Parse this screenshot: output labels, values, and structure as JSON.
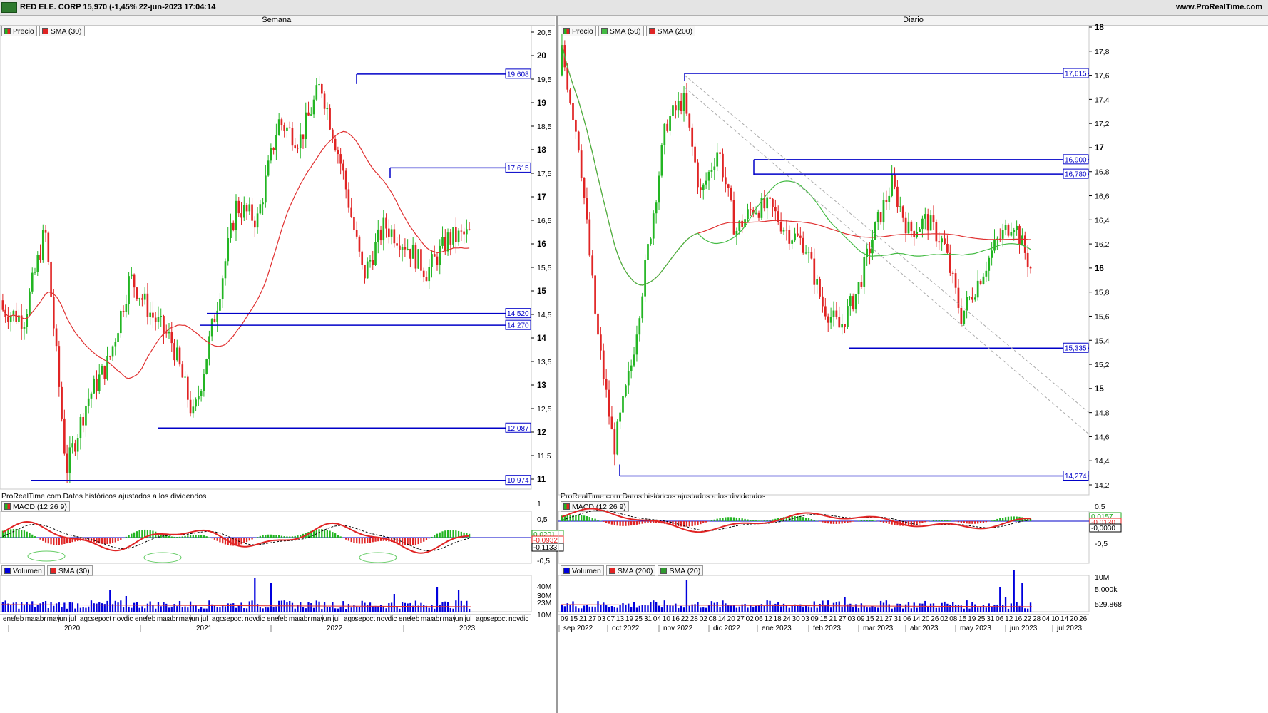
{
  "header": {
    "title": "RED ELE. CORP 15,970 (-1,45% 22-jun-2023 17:04:14",
    "site": "www.ProRealTime.com"
  },
  "colors": {
    "up": "#22b522",
    "down": "#e02424",
    "level": "#0000c8",
    "sma_red": "#e03030",
    "sma_green": "#44bb44",
    "volume": "#0000dd"
  },
  "left": {
    "title": "Semanal",
    "legend": [
      "Precio",
      "SMA (30)"
    ],
    "note": "ProRealTime.com  Datos históricos ajustados a los dividendos",
    "price_axis": [
      "20,5",
      "20",
      "19,5",
      "19",
      "18,5",
      "18",
      "17,5",
      "17",
      "16,5",
      "16",
      "15,5",
      "15",
      "14,5",
      "14",
      "13,5",
      "13",
      "12,5",
      "12",
      "11,5",
      "11"
    ],
    "levels": [
      "19,608",
      "17,615",
      "14,520",
      "14,270",
      "12,087",
      "10,974"
    ],
    "macd": {
      "legend": "MACD (12 26 9)",
      "axis": [
        "1",
        "0,5",
        "-0,5"
      ],
      "vals": [
        "0,0201",
        "-0,0932",
        "-0,1133"
      ]
    },
    "volume": {
      "legend": [
        "Volumen",
        "SMA (30)"
      ],
      "axis": [
        "40M",
        "30M",
        "23M",
        "10M"
      ]
    },
    "months": [
      "ene",
      "feb",
      "mar",
      "abr",
      "may",
      "jun",
      "jul",
      "ago",
      "sep",
      "oct",
      "nov",
      "dic",
      "ene",
      "feb",
      "mar",
      "abr",
      "may",
      "jun",
      "jul",
      "ago",
      "sep",
      "oct",
      "nov",
      "dic",
      "ene",
      "feb",
      "mar",
      "abr",
      "may",
      "jun",
      "jul",
      "ago",
      "sep",
      "oct",
      "nov",
      "dic",
      "ene",
      "feb",
      "mar",
      "abr",
      "may",
      "jun",
      "jul",
      "ago",
      "sep",
      "oct",
      "nov",
      "dic"
    ],
    "years": [
      "2020",
      "2021",
      "2022",
      "2023"
    ]
  },
  "right": {
    "title": "Diario",
    "legend": [
      "Precio",
      "SMA (50)",
      "SMA (200)"
    ],
    "note": "ProRealTime.com  Datos históricos ajustados a los dividendos",
    "price_axis": [
      "18",
      "17,8",
      "17,6",
      "17,4",
      "17,2",
      "17",
      "16,8",
      "16,6",
      "16,4",
      "16,2",
      "16",
      "15,8",
      "15,6",
      "15,4",
      "15,2",
      "15",
      "14,8",
      "14,6",
      "14,4",
      "14,2"
    ],
    "levels": [
      "17,615",
      "16,900",
      "16,780",
      "15,335",
      "14,274"
    ],
    "macd": {
      "legend": "MACD (12 26 9)",
      "axis": [
        "0,5",
        "-0,5"
      ],
      "vals": [
        "0,0157",
        "-0,0130",
        "-0,0030"
      ]
    },
    "volume": {
      "legend": [
        "Volumen",
        "SMA (200)",
        "SMA (20)"
      ],
      "axis": [
        "10M",
        "5.000k",
        "529.868"
      ]
    },
    "days": [
      "09",
      "15",
      "21",
      "27",
      "03",
      "07",
      "13",
      "19",
      "25",
      "31",
      "04",
      "10",
      "16",
      "22",
      "28",
      "02",
      "08",
      "14",
      "20",
      "27",
      "02",
      "06",
      "12",
      "18",
      "24",
      "30",
      "03",
      "09",
      "15",
      "21",
      "27",
      "03",
      "09",
      "15",
      "21",
      "27",
      "31",
      "06",
      "14",
      "20",
      "26",
      "02",
      "08",
      "15",
      "19",
      "25",
      "31",
      "06",
      "12",
      "16",
      "22",
      "28",
      "04",
      "10",
      "14",
      "20",
      "26"
    ],
    "month_labels": [
      "sep 2022",
      "oct 2022",
      "nov 2022",
      "dic 2022",
      "ene 2023",
      "feb 2023",
      "mar 2023",
      "abr 2023",
      "may 2023",
      "jun 2023",
      "jul 2023"
    ]
  }
}
